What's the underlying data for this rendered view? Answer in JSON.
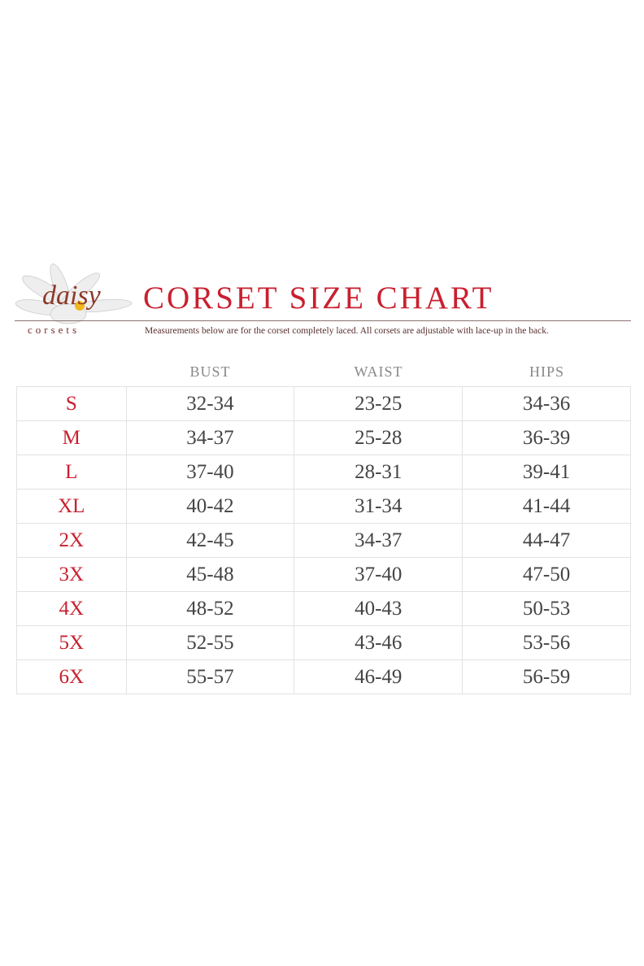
{
  "brand": {
    "logo_script": "daisy",
    "logo_word": "corsets"
  },
  "title": "CORSET SIZE CHART",
  "subtitle": "Measurements below are for the corset completely laced.  All corsets are adjustable with lace-up in the back.",
  "colors": {
    "accent": "#c9202f",
    "text": "#444444",
    "grid": "#e2e2e2"
  },
  "table": {
    "headers": [
      "BUST",
      "WAIST",
      "HIPS"
    ],
    "rows": [
      {
        "size": "S",
        "bust": "32-34",
        "waist": "23-25",
        "hips": "34-36"
      },
      {
        "size": "M",
        "bust": "34-37",
        "waist": "25-28",
        "hips": "36-39"
      },
      {
        "size": "L",
        "bust": "37-40",
        "waist": "28-31",
        "hips": "39-41"
      },
      {
        "size": "XL",
        "bust": "40-42",
        "waist": "31-34",
        "hips": "41-44"
      },
      {
        "size": "2X",
        "bust": "42-45",
        "waist": "34-37",
        "hips": "44-47"
      },
      {
        "size": "3X",
        "bust": "45-48",
        "waist": "37-40",
        "hips": "47-50"
      },
      {
        "size": "4X",
        "bust": "48-52",
        "waist": "40-43",
        "hips": "50-53"
      },
      {
        "size": "5X",
        "bust": "52-55",
        "waist": "43-46",
        "hips": "53-56"
      },
      {
        "size": "6X",
        "bust": "55-57",
        "waist": "46-49",
        "hips": "56-59"
      }
    ]
  }
}
